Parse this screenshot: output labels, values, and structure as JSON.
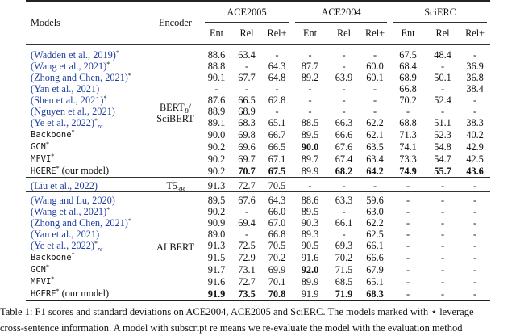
{
  "header": {
    "models": "Models",
    "encoder": "Encoder",
    "datasets": [
      "ACE2005",
      "ACE2004",
      "SciERC"
    ],
    "metrics": [
      "Ent",
      "Rel",
      "Rel+",
      "Ent",
      "Rel",
      "Rel+",
      "Ent",
      "Rel",
      "Rel+"
    ]
  },
  "groups": [
    {
      "encoder": "BERT",
      "encoder_sub": "B",
      "encoder_line2": "/ SciBERT",
      "rows": [
        {
          "model": "(Wadden et al., 2019)",
          "star": "*",
          "sub": "",
          "cite": true,
          "vals": [
            "88.6",
            "63.4",
            "-",
            "-",
            "-",
            "-",
            "67.5",
            "48.4",
            "-"
          ],
          "bold": []
        },
        {
          "model": "(Wang et al., 2021)",
          "star": "*",
          "sub": "",
          "cite": true,
          "vals": [
            "88.8",
            "-",
            "64.3",
            "87.7",
            "-",
            "60.0",
            "68.4",
            "-",
            "36.9"
          ],
          "bold": []
        },
        {
          "model": "(Zhong and Chen, 2021)",
          "star": "*",
          "sub": "",
          "cite": true,
          "vals": [
            "90.1",
            "67.7",
            "64.8",
            "89.2",
            "63.9",
            "60.1",
            "68.9",
            "50.1",
            "36.8"
          ],
          "bold": []
        },
        {
          "model": "(Yan et al., 2021)",
          "star": "",
          "sub": "",
          "cite": true,
          "vals": [
            "-",
            "-",
            "-",
            "-",
            "-",
            "-",
            "66.8",
            "-",
            "38.4"
          ],
          "bold": []
        },
        {
          "model": "(Shen et al., 2021)",
          "star": "*",
          "sub": "",
          "cite": true,
          "vals": [
            "87.6",
            "66.5",
            "62.8",
            "-",
            "-",
            "-",
            "70.2",
            "52.4",
            "-"
          ],
          "bold": []
        },
        {
          "model": "(Nguyen et al., 2021)",
          "star": "",
          "sub": "",
          "cite": true,
          "vals": [
            "88.9",
            "68.9",
            "-",
            "-",
            "-",
            "-",
            "-",
            "-",
            "-"
          ],
          "bold": []
        },
        {
          "model": "(Ye et al., 2022)",
          "star": "*",
          "sub": "re",
          "cite": true,
          "vals": [
            "89.1",
            "68.3",
            "65.1",
            "88.5",
            "66.3",
            "62.2",
            "68.8",
            "51.1",
            "38.3"
          ],
          "bold": []
        },
        {
          "model": "Backbone",
          "star": "*",
          "sub": "",
          "mono": true,
          "vals": [
            "90.0",
            "69.8",
            "66.7",
            "89.5",
            "66.6",
            "62.1",
            "71.3",
            "52.3",
            "40.2"
          ],
          "bold": []
        },
        {
          "model": "GCN",
          "star": "*",
          "sub": "",
          "mono": true,
          "vals": [
            "90.2",
            "69.6",
            "66.5",
            "90.0",
            "67.6",
            "63.5",
            "74.1",
            "54.8",
            "42.9"
          ],
          "bold": [
            3
          ]
        },
        {
          "model": "MFVI",
          "star": "*",
          "sub": "",
          "mono": true,
          "vals": [
            "90.2",
            "69.7",
            "67.1",
            "89.7",
            "67.4",
            "63.4",
            "73.3",
            "54.7",
            "42.5"
          ],
          "bold": []
        },
        {
          "model": "HGERE",
          "star": "*",
          "suffix": " (our model)",
          "sub": "",
          "mono": true,
          "vals": [
            "90.2",
            "70.7",
            "67.5",
            "89.9",
            "68.2",
            "64.2",
            "74.9",
            "55.7",
            "43.6"
          ],
          "bold": [
            1,
            2,
            4,
            5,
            6,
            7,
            8
          ]
        }
      ]
    },
    {
      "encoder": "T5",
      "encoder_sub": "3B",
      "encoder_line2": "",
      "rows": [
        {
          "model": "(Liu et al., 2022)",
          "star": "",
          "sub": "",
          "cite": true,
          "vals": [
            "91.3",
            "72.7",
            "70.5",
            "-",
            "-",
            "-",
            "-",
            "-",
            "-"
          ],
          "bold": []
        }
      ]
    },
    {
      "encoder": "ALBERT",
      "encoder_sub": "",
      "encoder_line2": "",
      "rows": [
        {
          "model": "(Wang and Lu, 2020)",
          "star": "",
          "sub": "",
          "cite": true,
          "vals": [
            "89.5",
            "67.6",
            "64.3",
            "88.6",
            "63.3",
            "59.6",
            "-",
            "-",
            "-"
          ],
          "bold": []
        },
        {
          "model": "(Wang et al., 2021)",
          "star": "*",
          "sub": "",
          "cite": true,
          "vals": [
            "90.2",
            "-",
            "66.0",
            "89.5",
            "-",
            "63.0",
            "-",
            "-",
            "-"
          ],
          "bold": []
        },
        {
          "model": "(Zhong and Chen, 2021)",
          "star": "*",
          "sub": "",
          "cite": true,
          "vals": [
            "90.9",
            "69.4",
            "67.0",
            "90.3",
            "66.1",
            "62.2",
            "-",
            "-",
            "-"
          ],
          "bold": []
        },
        {
          "model": "(Yan et al., 2021)",
          "star": "",
          "sub": "",
          "cite": true,
          "vals": [
            "89.0",
            "-",
            "66.8",
            "89.3",
            "-",
            "62.5",
            "-",
            "-",
            "-"
          ],
          "bold": []
        },
        {
          "model": "(Ye et al., 2022)",
          "star": "*",
          "sub": "re",
          "cite": true,
          "vals": [
            "91.3",
            "72.5",
            "70.5",
            "90.5",
            "69.3",
            "66.1",
            "-",
            "-",
            "-"
          ],
          "bold": []
        },
        {
          "model": "Backbone",
          "star": "*",
          "sub": "",
          "mono": true,
          "vals": [
            "91.5",
            "72.9",
            "70.2",
            "91.6",
            "70.2",
            "66.6",
            "-",
            "-",
            "-"
          ],
          "bold": []
        },
        {
          "model": "GCN",
          "star": "*",
          "sub": "",
          "mono": true,
          "vals": [
            "91.7",
            "73.1",
            "69.9",
            "92.0",
            "71.5",
            "67.9",
            "-",
            "-",
            "-"
          ],
          "bold": [
            3
          ]
        },
        {
          "model": "MFVI",
          "star": "*",
          "sub": "",
          "mono": true,
          "vals": [
            "91.6",
            "72.7",
            "70.1",
            "89.9",
            "68.5",
            "65.1",
            "-",
            "-",
            "-"
          ],
          "bold": []
        },
        {
          "model": "HGERE",
          "star": "*",
          "suffix": " (our model)",
          "sub": "",
          "mono": true,
          "vals": [
            "91.9",
            "73.5",
            "70.8",
            "91.9",
            "71.9",
            "68.3",
            "-",
            "-",
            "-"
          ],
          "bold": [
            0,
            1,
            2,
            4,
            5
          ]
        }
      ]
    }
  ],
  "caption": {
    "line1": "Table 1: F1 scores and standard deviations on ACE2004, ACE2005 and SciERC. The models marked with ⋆ leverage",
    "line2": "cross-sentence information. A model with subscript re means we re-evaluate the model with the evaluation method"
  }
}
